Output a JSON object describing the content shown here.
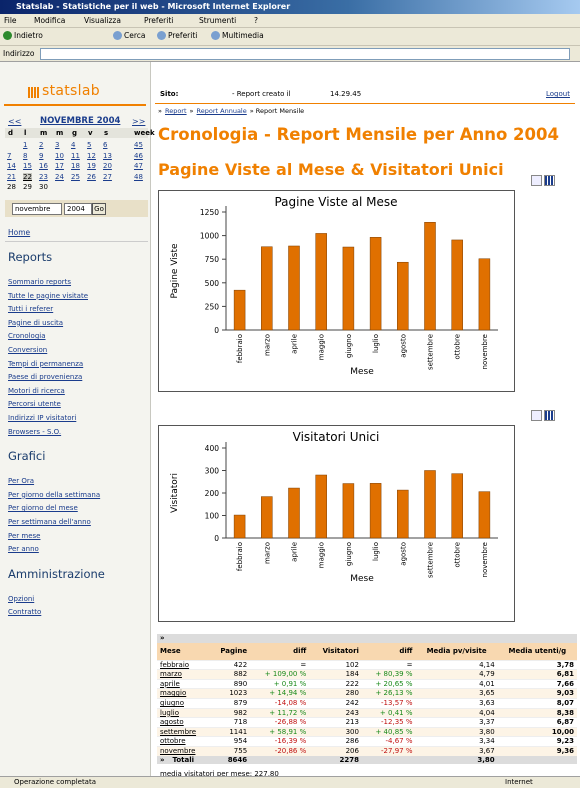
{
  "window": {
    "title": "Statslab - Statistiche per il web - Microsoft Internet Explorer",
    "menu": [
      "File",
      "Modifica",
      "Visualizza",
      "Preferiti",
      "Strumenti",
      "?"
    ],
    "toolbar": [
      "Indietro",
      "Cerca",
      "Preferiti",
      "Multimedia"
    ],
    "address_label": "Indirizzo"
  },
  "sidebar": {
    "logo": "statslab",
    "calendar": {
      "prev": "<<",
      "month": "NOVEMBRE 2004",
      "next": ">>",
      "headers": [
        "d",
        "l",
        "m",
        "m",
        "g",
        "v",
        "s",
        "week"
      ],
      "rows": [
        {
          "days": [
            "1",
            "2",
            "3",
            "4",
            "5",
            "6"
          ],
          "week": "45"
        },
        {
          "days": [
            "7",
            "8",
            "9",
            "10",
            "11",
            "12",
            "13"
          ],
          "week": "46"
        },
        {
          "days": [
            "14",
            "15",
            "16",
            "17",
            "18",
            "19",
            "20"
          ],
          "week": "47"
        },
        {
          "days": [
            "21",
            "22",
            "23",
            "24",
            "25",
            "26",
            "27"
          ],
          "week": "48"
        },
        {
          "days": [
            "28",
            "29",
            "30"
          ]
        }
      ]
    },
    "form": {
      "month": "novembre",
      "year": "2004",
      "button": "Go"
    },
    "home": "Home",
    "sections": [
      {
        "title": "Reports",
        "links": [
          "Sommario reports",
          "Tutte le pagine visitate",
          "Tutti i referer",
          "Pagine di uscita",
          "Cronologia",
          "Conversion",
          "Tempi di permanenza",
          "Paese di provenienza",
          "Motori di ricerca",
          "Percorsi utente",
          "Indirizzi IP visitatori",
          "Browsers - S.O."
        ]
      },
      {
        "title": "Grafici",
        "links": [
          "Per Ora",
          "Per giorno della settimana",
          "Per giorno del mese",
          "Per settimana dell'anno",
          "Per mese",
          "Per anno"
        ]
      },
      {
        "title": "Amministrazione",
        "links": [
          "Opzioni",
          "Contratto"
        ]
      }
    ]
  },
  "topbar": {
    "site": "Sito:",
    "created": "- Report creato il",
    "time": "14.29.45",
    "logout": "Logout"
  },
  "breadcrumb": [
    "»",
    "Report",
    "»",
    "Report Annuale",
    "» Report Mensile"
  ],
  "headings": [
    "Cronologia - Report Mensile per Anno 2004",
    "Pagine Viste al Mese & Visitatori Unici"
  ],
  "chart_data": [
    {
      "type": "bar",
      "title": "Pagine Viste al Mese",
      "y_label": "Pagine Viste",
      "x_label": "Mese",
      "categories": [
        "febbraio",
        "marzo",
        "aprile",
        "maggio",
        "giugno",
        "luglio",
        "agosto",
        "settembre",
        "ottobre",
        "novembre"
      ],
      "values": [
        422,
        882,
        890,
        1023,
        879,
        982,
        718,
        1141,
        954,
        755
      ],
      "color": "#e07000",
      "ylim": [
        0,
        1250
      ],
      "yticks": [
        0,
        250,
        500,
        750,
        1000,
        1250
      ]
    },
    {
      "type": "bar",
      "title": "Visitatori Unici",
      "y_label": "Visitatori",
      "x_label": "Mese",
      "categories": [
        "febbraio",
        "marzo",
        "aprile",
        "maggio",
        "giugno",
        "luglio",
        "agosto",
        "settembre",
        "ottobre",
        "novembre"
      ],
      "values": [
        102,
        184,
        222,
        280,
        242,
        243,
        213,
        300,
        286,
        206
      ],
      "color": "#e07000",
      "ylim": [
        0,
        400
      ],
      "yticks": [
        0,
        100,
        200,
        300,
        400
      ]
    }
  ],
  "table": {
    "corner": "»",
    "columns": [
      "Mese",
      "Pagine",
      "diff",
      "Visitatori",
      "diff",
      "Media pv/visite",
      "Media utenti/g"
    ],
    "rows": [
      [
        "febbraio",
        "422",
        "=",
        "102",
        "=",
        "4,14",
        "3,78"
      ],
      [
        "marzo",
        "882",
        "+ 109,00 %",
        "184",
        "+ 80,39 %",
        "4,79",
        "6,81"
      ],
      [
        "aprile",
        "890",
        "+ 0,91 %",
        "222",
        "+ 20,65 %",
        "4,01",
        "7,66"
      ],
      [
        "maggio",
        "1023",
        "+ 14,94 %",
        "280",
        "+ 26,13 %",
        "3,65",
        "9,03"
      ],
      [
        "giugno",
        "879",
        "-14,08 %",
        "242",
        "-13,57 %",
        "3,63",
        "8,07"
      ],
      [
        "luglio",
        "982",
        "+ 11,72 %",
        "243",
        "+ 0,41 %",
        "4,04",
        "8,38"
      ],
      [
        "agosto",
        "718",
        "-26,88 %",
        "213",
        "-12,35 %",
        "3,37",
        "6,87"
      ],
      [
        "settembre",
        "1141",
        "+ 58,91 %",
        "300",
        "+ 40,85 %",
        "3,80",
        "10,00"
      ],
      [
        "ottobre",
        "954",
        "-16,39 %",
        "286",
        "-4,67 %",
        "3,34",
        "9,23"
      ],
      [
        "novembre",
        "755",
        "-20,86 %",
        "206",
        "-27,97 %",
        "3,67",
        "9,36"
      ]
    ],
    "total": {
      "marker": "»",
      "label": "Totali",
      "pages": "8646",
      "visitors": "2278",
      "media": "3,80"
    }
  },
  "footer": "media visitatori per mese: 227,80",
  "status": {
    "text": "Operazione completata",
    "zone": "Internet"
  }
}
